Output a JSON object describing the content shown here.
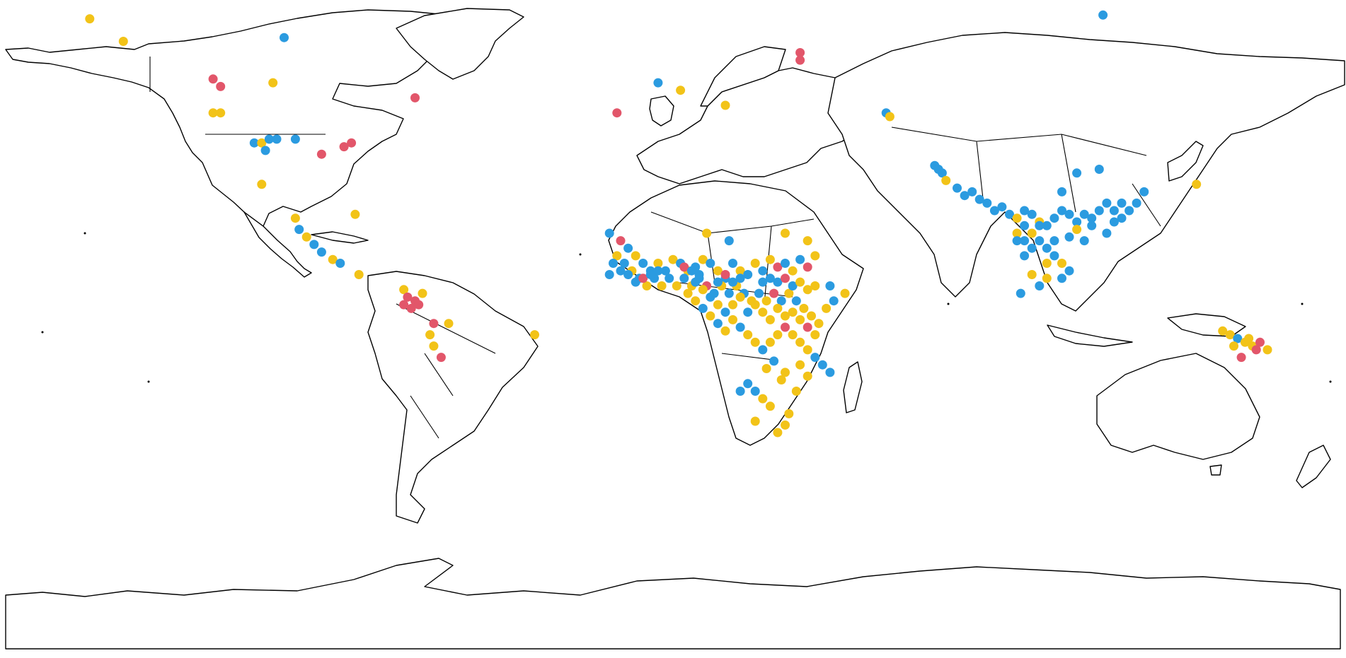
{
  "map": {
    "projection": "equirectangular",
    "extent": {
      "lon": [
        -180,
        180
      ],
      "lat": [
        -90,
        84
      ]
    },
    "series": [
      {
        "color": "#2b9be0"
      },
      {
        "color": "#f2c318"
      },
      {
        "color": "#e2566a"
      }
    ],
    "points": [
      [
        -156,
        79,
        1
      ],
      [
        -147,
        73,
        1
      ],
      [
        -104,
        74,
        0
      ],
      [
        -123,
        63,
        2
      ],
      [
        -121,
        61,
        2
      ],
      [
        -107,
        62,
        1
      ],
      [
        -123,
        54,
        1
      ],
      [
        -121,
        54,
        1
      ],
      [
        -112,
        46,
        0
      ],
      [
        -110,
        46,
        1
      ],
      [
        -108,
        47,
        0
      ],
      [
        -106,
        47,
        0
      ],
      [
        -109,
        44,
        0
      ],
      [
        -101,
        47,
        0
      ],
      [
        -94,
        43,
        2
      ],
      [
        -88,
        45,
        2
      ],
      [
        -86,
        46,
        2
      ],
      [
        -69,
        58,
        2
      ],
      [
        -110,
        35,
        1
      ],
      [
        -101,
        26,
        1
      ],
      [
        -100,
        23,
        0
      ],
      [
        -98,
        21,
        1
      ],
      [
        -96,
        19,
        0
      ],
      [
        -94,
        17,
        0
      ],
      [
        -91,
        15,
        1
      ],
      [
        -89,
        14,
        0
      ],
      [
        -85,
        27,
        1
      ],
      [
        -84,
        11,
        1
      ],
      [
        -72,
        7,
        1
      ],
      [
        -71,
        5,
        2
      ],
      [
        -69,
        4,
        2
      ],
      [
        -70,
        2,
        2
      ],
      [
        -72,
        3,
        2
      ],
      [
        -68,
        3,
        2
      ],
      [
        -67,
        6,
        1
      ],
      [
        -64,
        -2,
        2
      ],
      [
        -65,
        -5,
        1
      ],
      [
        -64,
        -8,
        1
      ],
      [
        -60,
        -2,
        1
      ],
      [
        -62,
        -11,
        2
      ],
      [
        -37,
        -5,
        1
      ],
      [
        -4,
        62,
        0
      ],
      [
        2,
        60,
        1
      ],
      [
        -15,
        54,
        2
      ],
      [
        14,
        56,
        1
      ],
      [
        34,
        70,
        2
      ],
      [
        34,
        68,
        2
      ],
      [
        57,
        54,
        0
      ],
      [
        58,
        53,
        1
      ],
      [
        115,
        80,
        0
      ],
      [
        -17,
        22,
        0
      ],
      [
        -14,
        20,
        2
      ],
      [
        -12,
        18,
        0
      ],
      [
        -10,
        16,
        1
      ],
      [
        -8,
        14,
        0
      ],
      [
        -6,
        12,
        0
      ],
      [
        -4,
        14,
        1
      ],
      [
        -2,
        12,
        0
      ],
      [
        0,
        15,
        1
      ],
      [
        2,
        14,
        0
      ],
      [
        4,
        12,
        1
      ],
      [
        6,
        13,
        0
      ],
      [
        8,
        15,
        1
      ],
      [
        10,
        14,
        0
      ],
      [
        12,
        12,
        1
      ],
      [
        14,
        10,
        0
      ],
      [
        16,
        14,
        0
      ],
      [
        18,
        12,
        1
      ],
      [
        20,
        11,
        0
      ],
      [
        22,
        14,
        1
      ],
      [
        24,
        12,
        0
      ],
      [
        26,
        15,
        1
      ],
      [
        28,
        13,
        2
      ],
      [
        30,
        14,
        0
      ],
      [
        32,
        12,
        1
      ],
      [
        34,
        15,
        0
      ],
      [
        36,
        13,
        2
      ],
      [
        38,
        16,
        1
      ],
      [
        -15,
        16,
        1
      ],
      [
        -13,
        14,
        0
      ],
      [
        -11,
        12,
        1
      ],
      [
        -9,
        10,
        0
      ],
      [
        -7,
        8,
        1
      ],
      [
        -5,
        10,
        0
      ],
      [
        -3,
        8,
        1
      ],
      [
        -1,
        10,
        0
      ],
      [
        1,
        8,
        1
      ],
      [
        3,
        10,
        0
      ],
      [
        5,
        8,
        1
      ],
      [
        7,
        10,
        0
      ],
      [
        9,
        8,
        2
      ],
      [
        11,
        6,
        0
      ],
      [
        13,
        8,
        1
      ],
      [
        15,
        6,
        0
      ],
      [
        17,
        8,
        1
      ],
      [
        19,
        6,
        0
      ],
      [
        21,
        4,
        1
      ],
      [
        23,
        6,
        0
      ],
      [
        25,
        4,
        1
      ],
      [
        27,
        6,
        2
      ],
      [
        29,
        4,
        0
      ],
      [
        31,
        6,
        1
      ],
      [
        33,
        4,
        0
      ],
      [
        35,
        2,
        1
      ],
      [
        37,
        0,
        1
      ],
      [
        39,
        -2,
        1
      ],
      [
        41,
        2,
        1
      ],
      [
        43,
        4,
        0
      ],
      [
        6,
        4,
        1
      ],
      [
        8,
        2,
        0
      ],
      [
        10,
        0,
        1
      ],
      [
        12,
        -2,
        0
      ],
      [
        14,
        -4,
        1
      ],
      [
        16,
        -1,
        1
      ],
      [
        18,
        -3,
        0
      ],
      [
        20,
        -5,
        1
      ],
      [
        22,
        -7,
        1
      ],
      [
        24,
        -9,
        0
      ],
      [
        26,
        -7,
        1
      ],
      [
        28,
        -5,
        1
      ],
      [
        30,
        -3,
        2
      ],
      [
        32,
        -5,
        1
      ],
      [
        34,
        -7,
        1
      ],
      [
        36,
        -9,
        1
      ],
      [
        38,
        -11,
        0
      ],
      [
        40,
        -13,
        0
      ],
      [
        42,
        -15,
        0
      ],
      [
        20,
        -18,
        0
      ],
      [
        18,
        -20,
        0
      ],
      [
        22,
        -20,
        0
      ],
      [
        24,
        -22,
        1
      ],
      [
        26,
        -24,
        1
      ],
      [
        22,
        -28,
        1
      ],
      [
        30,
        -29,
        1
      ],
      [
        28,
        -31,
        1
      ],
      [
        31,
        -26,
        1
      ],
      [
        25,
        -14,
        1
      ],
      [
        27,
        -12,
        0
      ],
      [
        30,
        -15,
        1
      ],
      [
        34,
        -13,
        1
      ],
      [
        36,
        -16,
        1
      ],
      [
        33,
        -20,
        1
      ],
      [
        29,
        -17,
        1
      ],
      [
        9,
        22,
        1
      ],
      [
        15,
        20,
        0
      ],
      [
        30,
        22,
        1
      ],
      [
        36,
        20,
        1
      ],
      [
        38,
        8,
        1
      ],
      [
        42,
        8,
        0
      ],
      [
        46,
        6,
        1
      ],
      [
        -12,
        11,
        0
      ],
      [
        -14,
        12,
        0
      ],
      [
        -16,
        14,
        0
      ],
      [
        -17,
        11,
        0
      ],
      [
        -10,
        9,
        0
      ],
      [
        -8,
        10,
        2
      ],
      [
        -6,
        11,
        0
      ],
      [
        -4,
        12,
        0
      ],
      [
        3,
        13,
        2
      ],
      [
        5,
        12,
        0
      ],
      [
        7,
        11,
        0
      ],
      [
        12,
        9,
        0
      ],
      [
        14,
        11,
        2
      ],
      [
        16,
        9,
        0
      ],
      [
        18,
        10,
        0
      ],
      [
        24,
        9,
        0
      ],
      [
        26,
        10,
        0
      ],
      [
        28,
        9,
        0
      ],
      [
        30,
        10,
        2
      ],
      [
        32,
        8,
        0
      ],
      [
        34,
        9,
        1
      ],
      [
        36,
        7,
        1
      ],
      [
        28,
        2,
        1
      ],
      [
        30,
        0,
        1
      ],
      [
        32,
        1,
        1
      ],
      [
        34,
        -1,
        1
      ],
      [
        36,
        -3,
        2
      ],
      [
        38,
        -5,
        1
      ],
      [
        26,
        -1,
        1
      ],
      [
        24,
        1,
        1
      ],
      [
        22,
        3,
        1
      ],
      [
        20,
        1,
        0
      ],
      [
        18,
        5,
        1
      ],
      [
        16,
        3,
        1
      ],
      [
        14,
        1,
        0
      ],
      [
        12,
        3,
        1
      ],
      [
        10,
        5,
        0
      ],
      [
        8,
        7,
        1
      ],
      [
        6,
        9,
        0
      ],
      [
        4,
        6,
        1
      ],
      [
        70,
        40,
        0
      ],
      [
        72,
        38,
        0
      ],
      [
        71,
        39,
        0
      ],
      [
        73,
        36,
        1
      ],
      [
        76,
        34,
        0
      ],
      [
        78,
        32,
        0
      ],
      [
        80,
        33,
        0
      ],
      [
        82,
        31,
        0
      ],
      [
        84,
        30,
        0
      ],
      [
        86,
        28,
        0
      ],
      [
        88,
        29,
        0
      ],
      [
        90,
        27,
        0
      ],
      [
        92,
        26,
        1
      ],
      [
        94,
        28,
        0
      ],
      [
        96,
        27,
        0
      ],
      [
        98,
        25,
        1
      ],
      [
        100,
        24,
        0
      ],
      [
        102,
        26,
        0
      ],
      [
        104,
        28,
        0
      ],
      [
        106,
        27,
        0
      ],
      [
        108,
        25,
        0
      ],
      [
        110,
        27,
        0
      ],
      [
        112,
        26,
        0
      ],
      [
        114,
        28,
        0
      ],
      [
        116,
        30,
        0
      ],
      [
        118,
        28,
        0
      ],
      [
        120,
        30,
        0
      ],
      [
        122,
        28,
        0
      ],
      [
        124,
        30,
        0
      ],
      [
        126,
        33,
        0
      ],
      [
        114,
        39,
        0
      ],
      [
        108,
        38,
        0
      ],
      [
        104,
        33,
        0
      ],
      [
        92,
        22,
        1
      ],
      [
        94,
        20,
        0
      ],
      [
        96,
        22,
        1
      ],
      [
        98,
        20,
        0
      ],
      [
        100,
        18,
        0
      ],
      [
        102,
        16,
        0
      ],
      [
        104,
        14,
        1
      ],
      [
        106,
        12,
        0
      ],
      [
        104,
        10,
        0
      ],
      [
        100,
        10,
        1
      ],
      [
        98,
        8,
        0
      ],
      [
        96,
        11,
        1
      ],
      [
        94,
        16,
        0
      ],
      [
        92,
        20,
        0
      ],
      [
        100,
        14,
        1
      ],
      [
        102,
        20,
        0
      ],
      [
        98,
        24,
        0
      ],
      [
        96,
        18,
        0
      ],
      [
        94,
        24,
        0
      ],
      [
        106,
        21,
        0
      ],
      [
        108,
        23,
        1
      ],
      [
        110,
        20,
        0
      ],
      [
        112,
        24,
        0
      ],
      [
        116,
        22,
        0
      ],
      [
        118,
        25,
        0
      ],
      [
        120,
        26,
        0
      ],
      [
        93,
        6,
        0
      ],
      [
        140,
        35,
        1
      ],
      [
        147,
        -4,
        1
      ],
      [
        149,
        -5,
        1
      ],
      [
        151,
        -6,
        0
      ],
      [
        153,
        -7,
        1
      ],
      [
        155,
        -8,
        1
      ],
      [
        157,
        -7,
        2
      ],
      [
        159,
        -9,
        1
      ],
      [
        156,
        -9,
        2
      ],
      [
        154,
        -6,
        1
      ],
      [
        152,
        -11,
        2
      ],
      [
        150,
        -8,
        1
      ]
    ]
  }
}
